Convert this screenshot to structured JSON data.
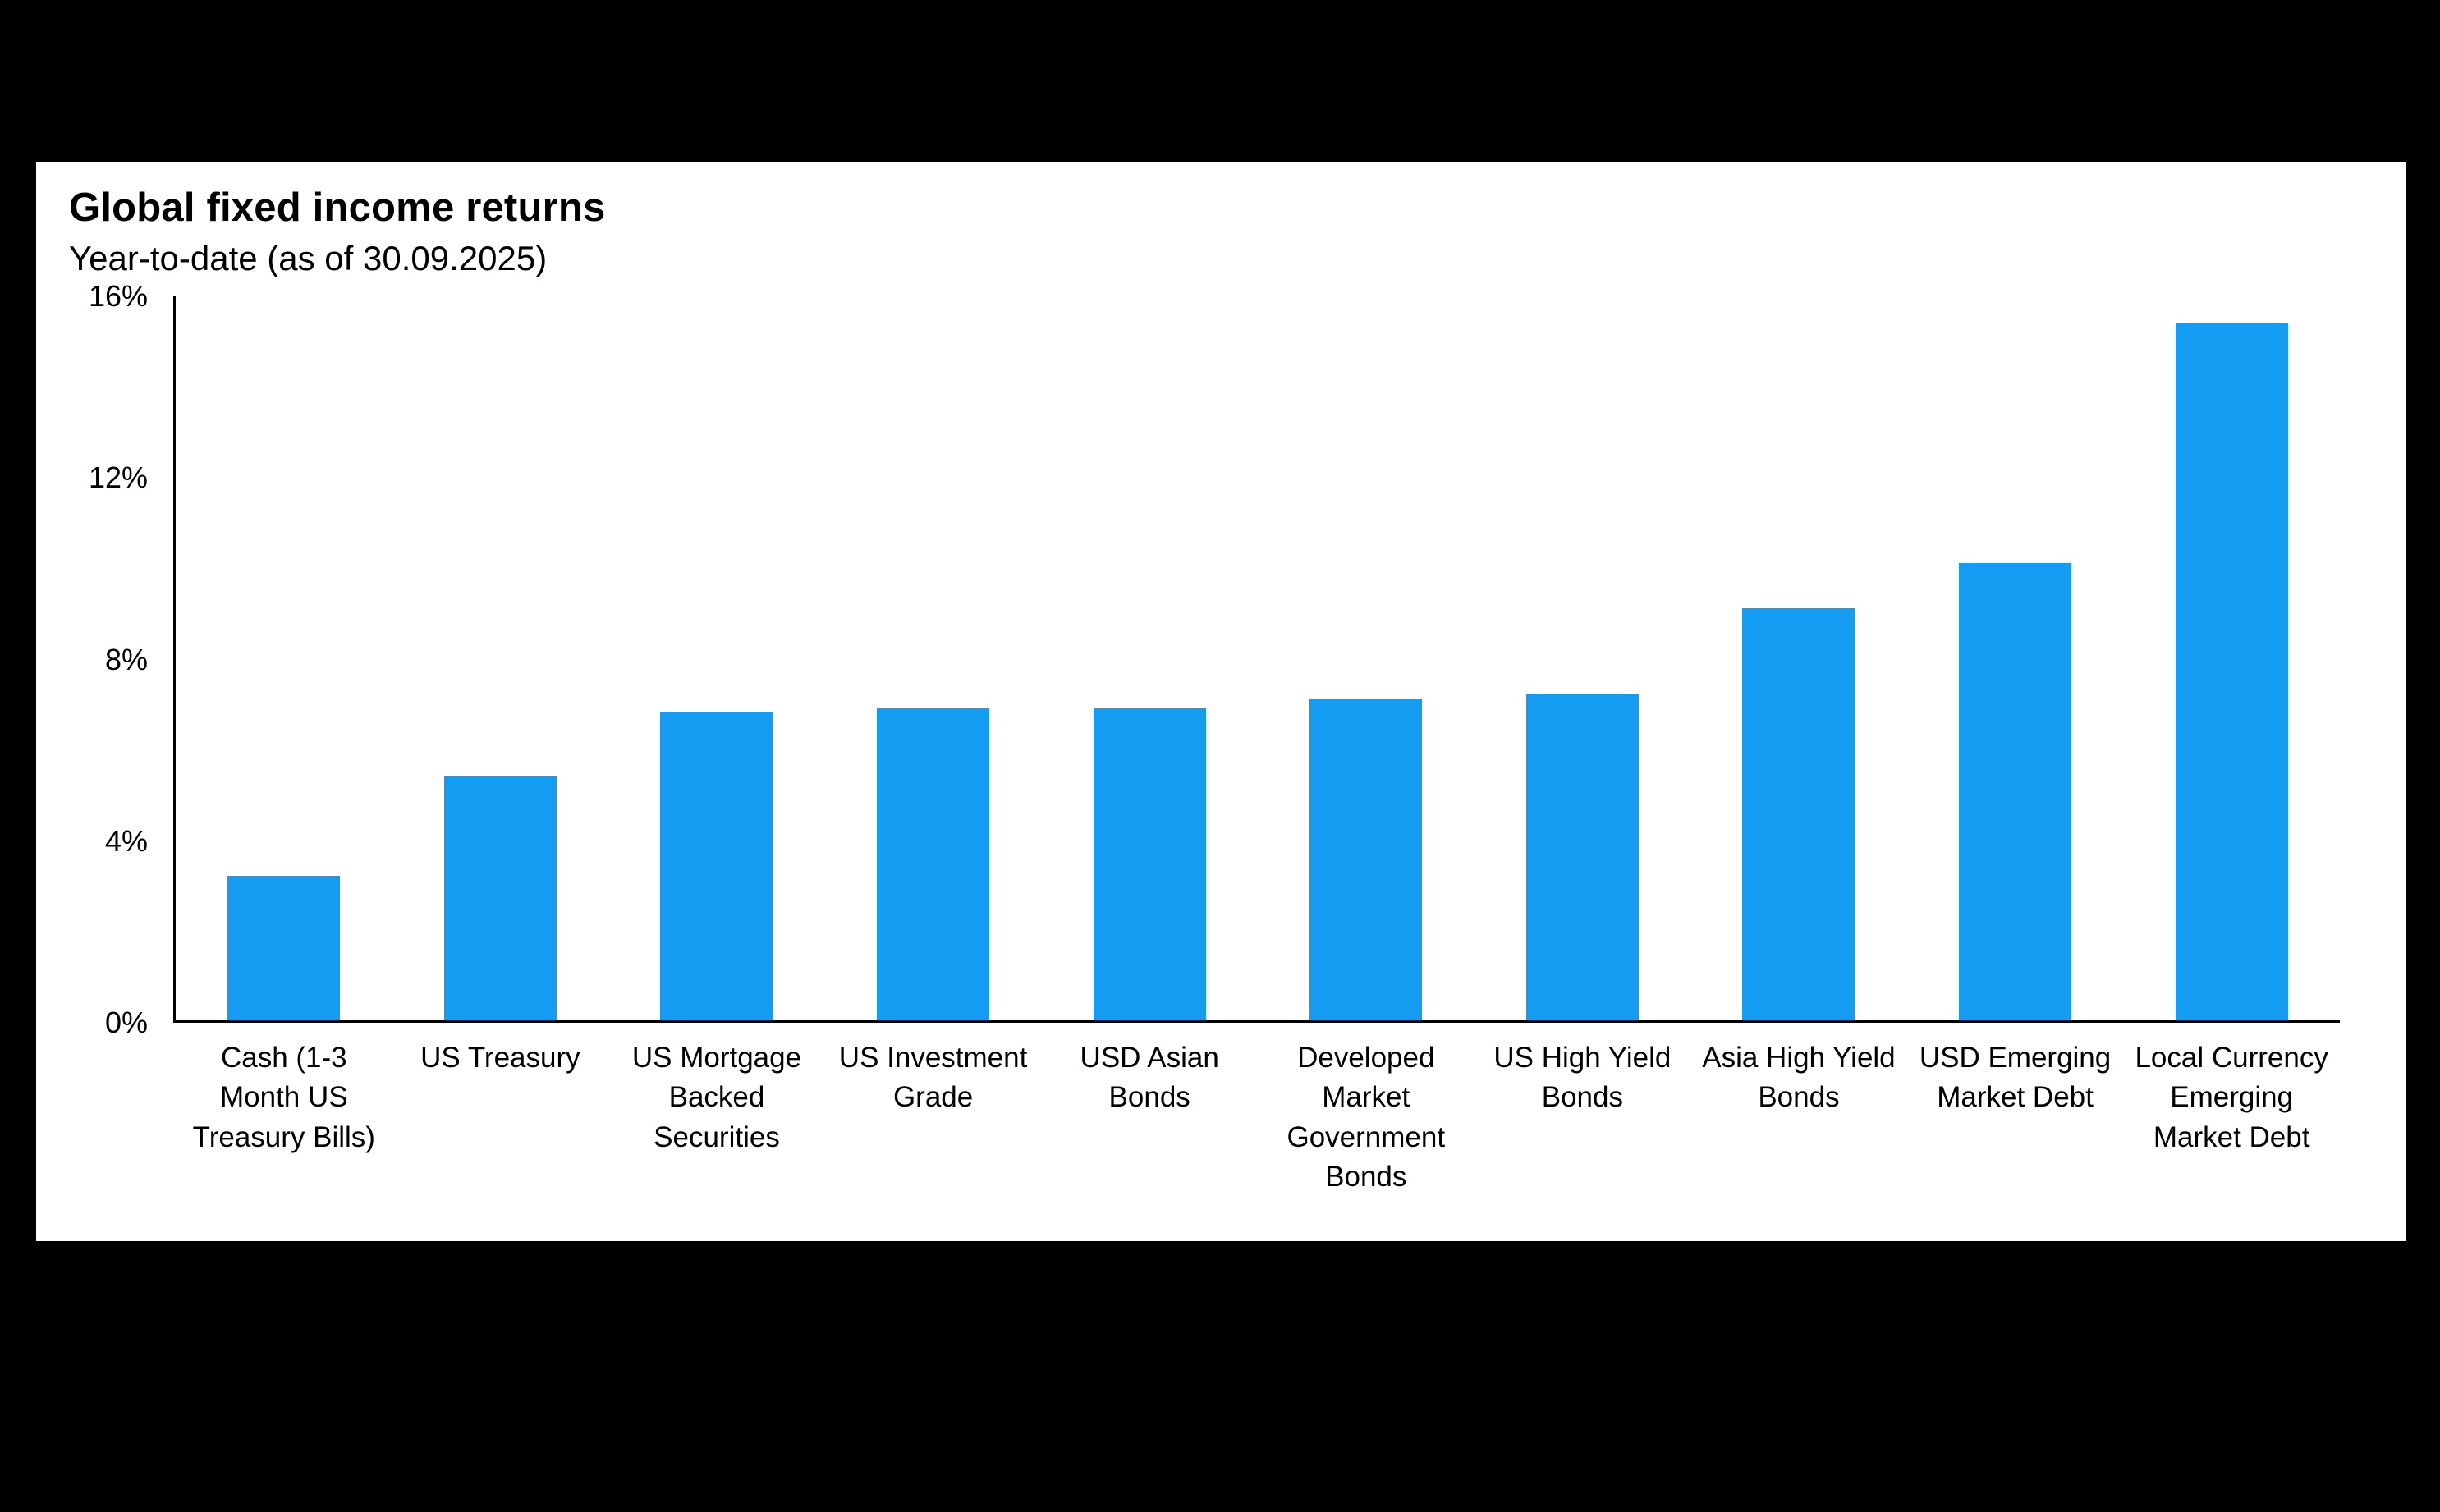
{
  "colors": {
    "page_background": "#000000",
    "panel_background": "#ffffff",
    "bar_color": "#149BF2",
    "axis_color": "#000000",
    "text_color": "#000000"
  },
  "chart_data": {
    "type": "bar",
    "title": "Global fixed income returns",
    "subtitle": "Year-to-date (as of 30.09.2025)",
    "categories": [
      "Cash (1-3 Month US Treasury Bills)",
      "US Treasury",
      "US Mortgage Backed Securities",
      "US Investment Grade",
      "USD Asian Bonds",
      "Developed Market Government Bonds",
      "US High Yield Bonds",
      "Asia High Yield Bonds",
      "USD Emerging Market Debt",
      "Local Currency Emerging Market Debt"
    ],
    "values": [
      3.2,
      5.4,
      6.8,
      6.9,
      6.9,
      7.1,
      7.2,
      9.1,
      10.1,
      15.4
    ],
    "ylim": [
      0,
      16
    ],
    "yticks": [
      0,
      4,
      8,
      12,
      16
    ],
    "ytick_suffix": "%",
    "xlabel": "",
    "ylabel": "",
    "grid": false,
    "legend": false
  }
}
